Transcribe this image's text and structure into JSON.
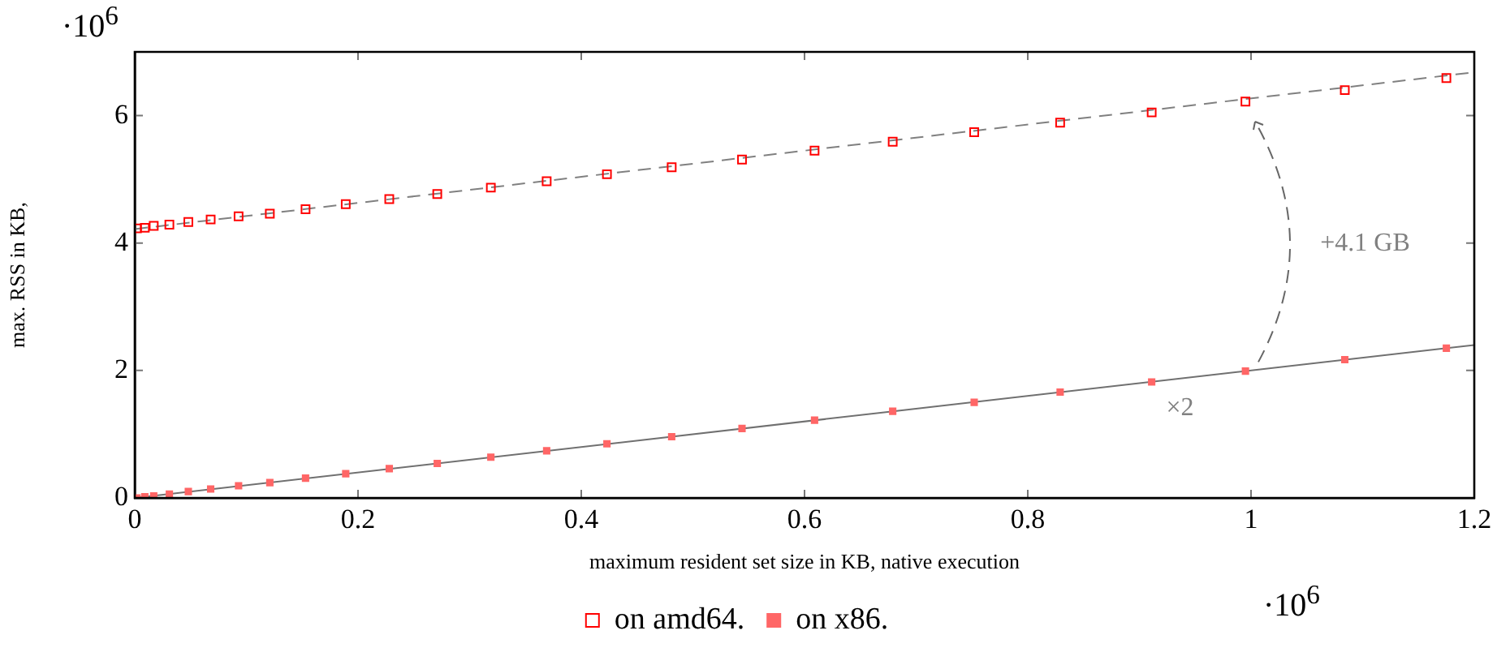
{
  "chart_data": {
    "type": "scatter",
    "xlabel": "maximum resident set size in KB, native execution",
    "ylabel": "max. RSS in KB,",
    "xlim": [
      0,
      1.2
    ],
    "ylim": [
      0,
      7
    ],
    "xticks": [
      0,
      0.2,
      0.4,
      0.6,
      0.8,
      1,
      1.2
    ],
    "yticks": [
      0,
      2,
      4,
      6
    ],
    "legend": "bottom",
    "annotations": [
      "+4.1 GB",
      "×2",
      "·10$^{6}$",
      "·10$^{6}$"
    ],
    "series": [
      {
        "name": "on amd64.",
        "color": "#ff0000",
        "marker": "square",
        "x": [
          0.002,
          0.009,
          0.017,
          0.031,
          0.048,
          0.068,
          0.093,
          0.121,
          0.153,
          0.189,
          0.228,
          0.271,
          0.319,
          0.369,
          0.423,
          0.481,
          0.544,
          0.609,
          0.679,
          0.752,
          0.829,
          0.911,
          0.995,
          1.084,
          1.175
        ],
        "values": [
          4.23,
          4.24,
          4.27,
          4.29,
          4.33,
          4.37,
          4.42,
          4.46,
          4.53,
          4.61,
          4.69,
          4.77,
          4.87,
          4.97,
          5.08,
          5.19,
          5.31,
          5.45,
          5.59,
          5.74,
          5.89,
          6.05,
          6.22,
          6.4,
          6.59
        ]
      },
      {
        "name": "on x86.",
        "color": "#ff6666",
        "marker": "square_filled",
        "x": [
          0.002,
          0.009,
          0.017,
          0.031,
          0.048,
          0.068,
          0.093,
          0.121,
          0.153,
          0.189,
          0.228,
          0.271,
          0.319,
          0.369,
          0.423,
          0.481,
          0.544,
          0.609,
          0.679,
          0.752,
          0.829,
          0.911,
          0.995,
          1.084,
          1.175
        ],
        "values": [
          0,
          0.02,
          0.03,
          0.06,
          0.1,
          0.14,
          0.19,
          0.24,
          0.31,
          0.38,
          0.46,
          0.54,
          0.64,
          0.74,
          0.85,
          0.96,
          1.09,
          1.22,
          1.36,
          1.5,
          1.66,
          1.82,
          1.99,
          2.17,
          2.35
        ]
      },
      {
        "type": "line",
        "color": "#808080",
        "line_style": "dashed",
        "x": [
          0,
          1.2
        ],
        "values": [
          4.22,
          6.68
        ]
      },
      {
        "type": "line",
        "color": "#707070",
        "line_style": "solid",
        "x": [
          0,
          1.2
        ],
        "values": [
          0,
          2.4
        ]
      }
    ]
  }
}
